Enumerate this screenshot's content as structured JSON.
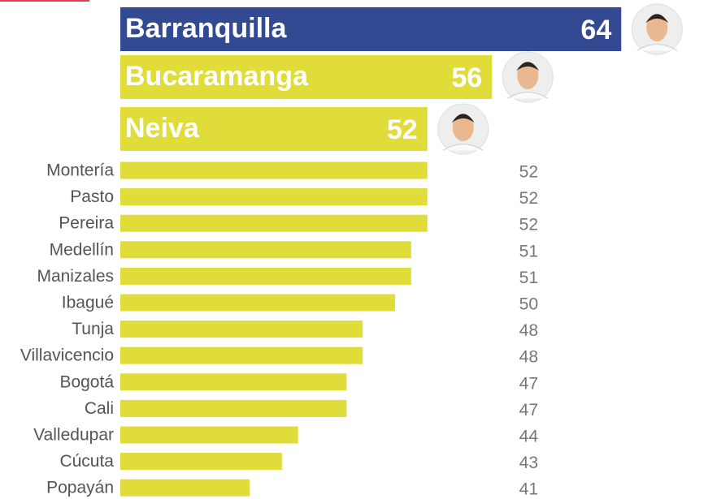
{
  "chart_data": {
    "type": "bar",
    "categories": [
      "Barranquilla",
      "Bucaramanga",
      "Neiva",
      "Montería",
      "Pasto",
      "Pereira",
      "Medellín",
      "Manizales",
      "Ibagué",
      "Tunja",
      "Villavicencio",
      "Bogotá",
      "Cali",
      "Valledupar",
      "Cúcuta",
      "Popayán"
    ],
    "values": [
      64,
      56,
      52,
      52,
      52,
      52,
      51,
      51,
      50,
      48,
      48,
      47,
      47,
      44,
      43,
      41
    ],
    "colors": [
      "#334a93",
      "#e0dc3a",
      "#e0dc3a",
      "#e0dc3a",
      "#e0dc3a",
      "#e0dc3a",
      "#e0dc3a",
      "#e0dc3a",
      "#e0dc3a",
      "#e0dc3a",
      "#e0dc3a",
      "#e0dc3a",
      "#e0dc3a",
      "#e0dc3a",
      "#e0dc3a",
      "#e0dc3a"
    ],
    "featured": 3,
    "xlim": [
      33,
      66
    ]
  }
}
